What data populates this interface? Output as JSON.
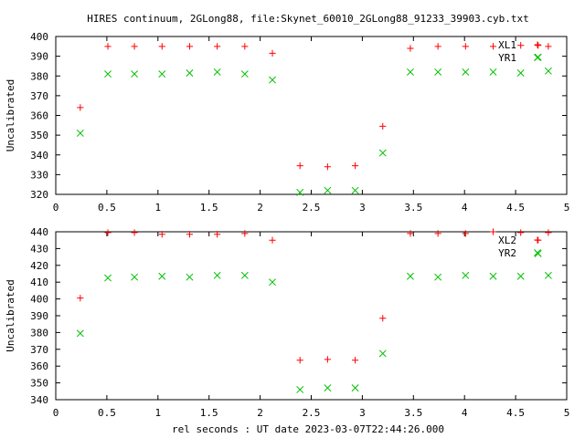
{
  "title": "HIRES continuum, 2GLong88, file:Skynet_60010_2GLong88_91233_39903.cyb.txt",
  "xlabel": "rel seconds : UT date 2023-03-07T22:44:26.000",
  "colors": {
    "XL": "#ff0000",
    "YR": "#00c000",
    "axis": "#000000",
    "background": "#ffffff"
  },
  "chart_data": [
    {
      "type": "scatter",
      "ylabel": "Uncalibrated",
      "xlim": [
        0,
        5
      ],
      "ylim": [
        320,
        400
      ],
      "xticks": [
        0,
        0.5,
        1,
        1.5,
        2,
        2.5,
        3,
        3.5,
        4,
        4.5,
        5
      ],
      "yticks": [
        320,
        330,
        340,
        350,
        360,
        370,
        380,
        390,
        400
      ],
      "grid": false,
      "legend": "top-right",
      "x": [
        0.24,
        0.51,
        0.77,
        1.04,
        1.31,
        1.58,
        1.85,
        2.12,
        2.39,
        2.66,
        2.93,
        3.2,
        3.47,
        3.74,
        4.01,
        4.28,
        4.55,
        4.72,
        4.82
      ],
      "series": [
        {
          "name": "XL1",
          "marker": "+",
          "color": "#ff0000",
          "values": [
            364,
            395,
            395,
            395,
            395,
            395,
            395,
            391.5,
            334.5,
            334,
            334.5,
            354.5,
            394,
            395,
            395,
            395,
            395.5,
            395.5,
            395
          ]
        },
        {
          "name": "YR1",
          "marker": "x",
          "color": "#00c000",
          "values": [
            351,
            381,
            381,
            381,
            381.5,
            382,
            381,
            378,
            321,
            322,
            322,
            341,
            382,
            382,
            382,
            382,
            381.5,
            389.5,
            382.5
          ]
        }
      ]
    },
    {
      "type": "scatter",
      "ylabel": "Uncalibrated",
      "xlim": [
        0,
        5
      ],
      "ylim": [
        340,
        440
      ],
      "xticks": [
        0,
        0.5,
        1,
        1.5,
        2,
        2.5,
        3,
        3.5,
        4,
        4.5,
        5
      ],
      "yticks": [
        340,
        350,
        360,
        370,
        380,
        390,
        400,
        410,
        420,
        430,
        440
      ],
      "grid": false,
      "legend": "top-right",
      "x": [
        0.24,
        0.51,
        0.77,
        1.04,
        1.31,
        1.58,
        1.85,
        2.12,
        2.39,
        2.66,
        2.93,
        3.2,
        3.47,
        3.74,
        4.01,
        4.28,
        4.55,
        4.72,
        4.82
      ],
      "series": [
        {
          "name": "XL2",
          "marker": "+",
          "color": "#ff0000",
          "values": [
            400.5,
            439.5,
            439.5,
            438.5,
            438.5,
            438.5,
            439,
            435,
            363.5,
            364,
            363.5,
            388.5,
            439,
            439,
            439,
            440,
            439.5,
            435,
            439.5
          ]
        },
        {
          "name": "YR2",
          "marker": "x",
          "color": "#00c000",
          "values": [
            379.5,
            412.5,
            413,
            413.5,
            413,
            414,
            414,
            410,
            346,
            347,
            347,
            367.5,
            413.5,
            413,
            414,
            413.5,
            413.5,
            427,
            414
          ]
        }
      ]
    }
  ]
}
